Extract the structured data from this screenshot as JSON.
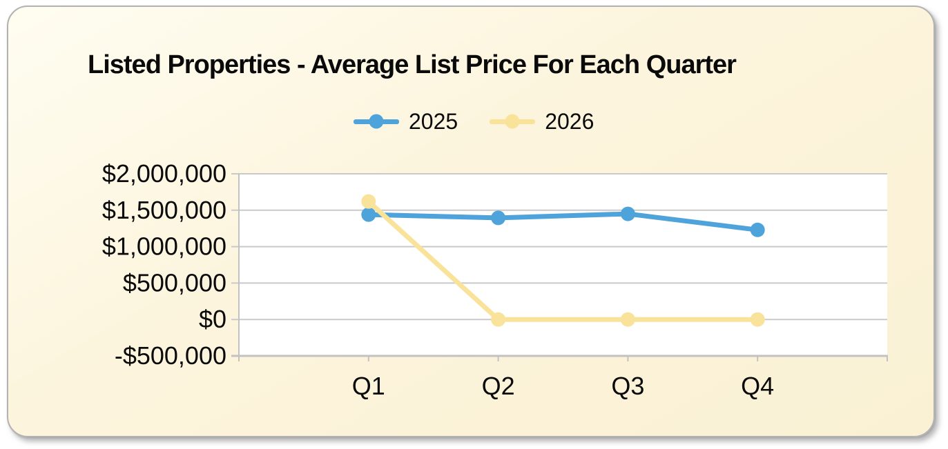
{
  "title": "Listed Properties - Average List Price For Each Quarter",
  "colors": {
    "card_background": "#FBF3D8",
    "card_border": "#B2B2B2",
    "plot_background": "#FFFFFF",
    "gridline": "#C9C9C9",
    "axis": "#C2C2C2",
    "text": "#0A0A0A",
    "series_2025": "#4DA3DA",
    "series_2026": "#F9E39A"
  },
  "legend": {
    "items": [
      {
        "label": "2025",
        "color": "#4DA3DA"
      },
      {
        "label": "2026",
        "color": "#F9E39A"
      }
    ]
  },
  "chart_data": {
    "type": "line",
    "title": "Listed Properties - Average List Price For Each Quarter",
    "categories": [
      "Q1",
      "Q2",
      "Q3",
      "Q4"
    ],
    "series": [
      {
        "name": "2025",
        "color": "#4DA3DA",
        "values": [
          1440000,
          1395000,
          1450000,
          1230000
        ]
      },
      {
        "name": "2026",
        "color": "#F9E39A",
        "values": [
          1620000,
          0,
          0,
          0
        ]
      }
    ],
    "xlabel": "",
    "ylabel": "",
    "ylim": [
      -500000,
      2000000
    ],
    "ytick_interval": 500000,
    "ytick_labels": [
      "$2,000,000",
      "$1,500,000",
      "$1,000,000",
      "$500,000",
      "$0",
      "-$500,000"
    ],
    "grid": true,
    "legend_position": "top",
    "marker": "circle",
    "value_format": "currency-USD"
  }
}
